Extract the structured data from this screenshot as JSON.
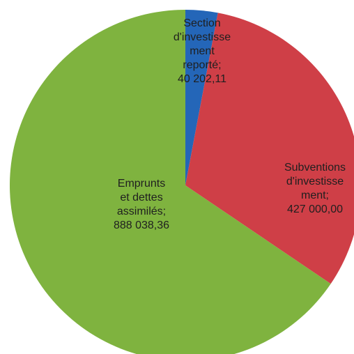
{
  "chart_data": {
    "type": "pie",
    "title": "",
    "slices": [
      {
        "name": "Section d'investissement reporté",
        "value": 40202.11,
        "value_label": "40 202,11",
        "label_lines": [
          "Section",
          "d'investisse",
          "ment",
          "reporté;",
          "40 202,11"
        ],
        "color": "#2466b8"
      },
      {
        "name": "Subventions d'investissement",
        "value": 427000.0,
        "value_label": "427 000,00",
        "label_lines": [
          "Subventions",
          "d'investisse",
          "ment;",
          "427 000,00"
        ],
        "color": "#cf3f47"
      },
      {
        "name": "Emprunts et dettes assimilés",
        "value": 888038.36,
        "value_label": "888 038,36",
        "label_lines": [
          "Emprunts",
          "et dettes",
          "assimilés;",
          "888 038,36"
        ],
        "color": "#7fb33f"
      }
    ],
    "start_angle_deg": 0,
    "direction": "clockwise",
    "data_labels": "inside",
    "legend": "none"
  }
}
